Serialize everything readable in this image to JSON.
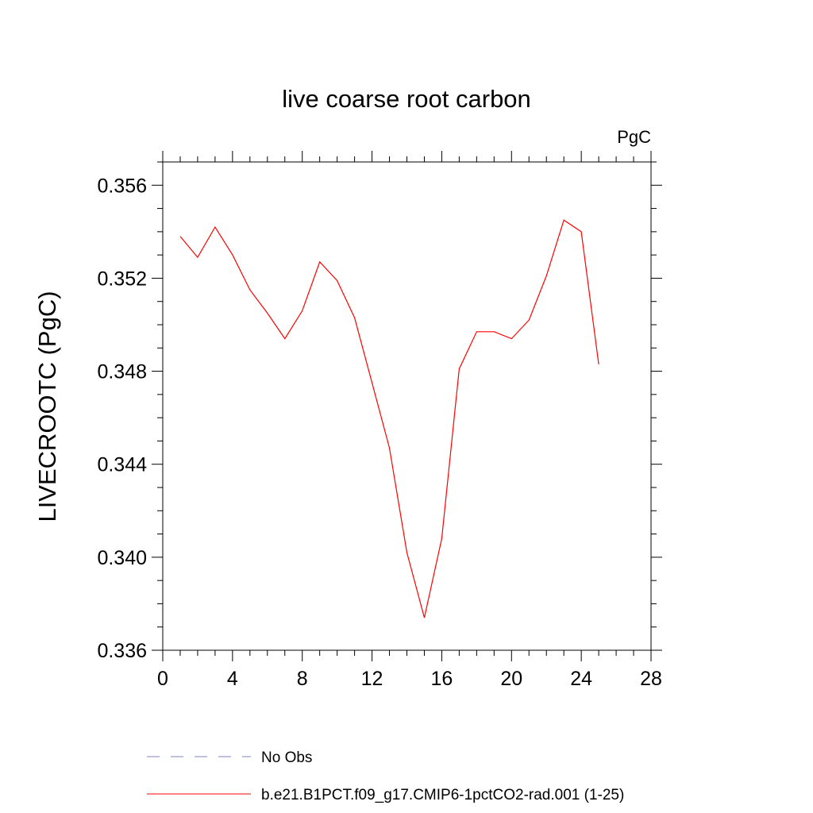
{
  "chart_data": {
    "type": "line",
    "title": "live coarse root carbon",
    "units_label": "PgC",
    "ylabel": "LIVECROOTC  (PgC)",
    "xlabel": "",
    "xlim": [
      0,
      28
    ],
    "ylim": [
      0.336,
      0.357
    ],
    "x_major_ticks": [
      0,
      4,
      8,
      12,
      16,
      20,
      24,
      28
    ],
    "x_tick_labels": [
      "0",
      "4",
      "8",
      "12",
      "16",
      "20",
      "24",
      "28"
    ],
    "x_minor_step": 1,
    "y_major_ticks": [
      0.336,
      0.34,
      0.344,
      0.348,
      0.352,
      0.356
    ],
    "y_tick_labels": [
      "0.336",
      "0.340",
      "0.344",
      "0.348",
      "0.352",
      "0.356"
    ],
    "y_minor_step": 0.001,
    "grid": false,
    "legend_position": "bottom",
    "series": [
      {
        "name": "b.e21.B1PCT.f09_g17.CMIP6-1pctCO2-rad.001 (1-25)",
        "color": "#ff0000",
        "line_style": "solid",
        "x": [
          1,
          2,
          3,
          4,
          5,
          6,
          7,
          8,
          9,
          10,
          11,
          12,
          13,
          14,
          15,
          16,
          17,
          18,
          19,
          20,
          21,
          22,
          23,
          24,
          25
        ],
        "y": [
          0.3538,
          0.3529,
          0.3542,
          0.353,
          0.3515,
          0.3505,
          0.3494,
          0.3506,
          0.3527,
          0.3519,
          0.3503,
          0.3475,
          0.3447,
          0.3402,
          0.3374,
          0.3408,
          0.3481,
          0.3497,
          0.3497,
          0.3494,
          0.3502,
          0.3521,
          0.3545,
          0.354,
          0.3483
        ]
      }
    ],
    "legend": [
      {
        "label": "No Obs",
        "color": "#8080c0",
        "line_style": "dashed"
      },
      {
        "label": "b.e21.B1PCT.f09_g17.CMIP6-1pctCO2-rad.001 (1-25)",
        "color": "#ff0000",
        "line_style": "solid"
      }
    ]
  }
}
